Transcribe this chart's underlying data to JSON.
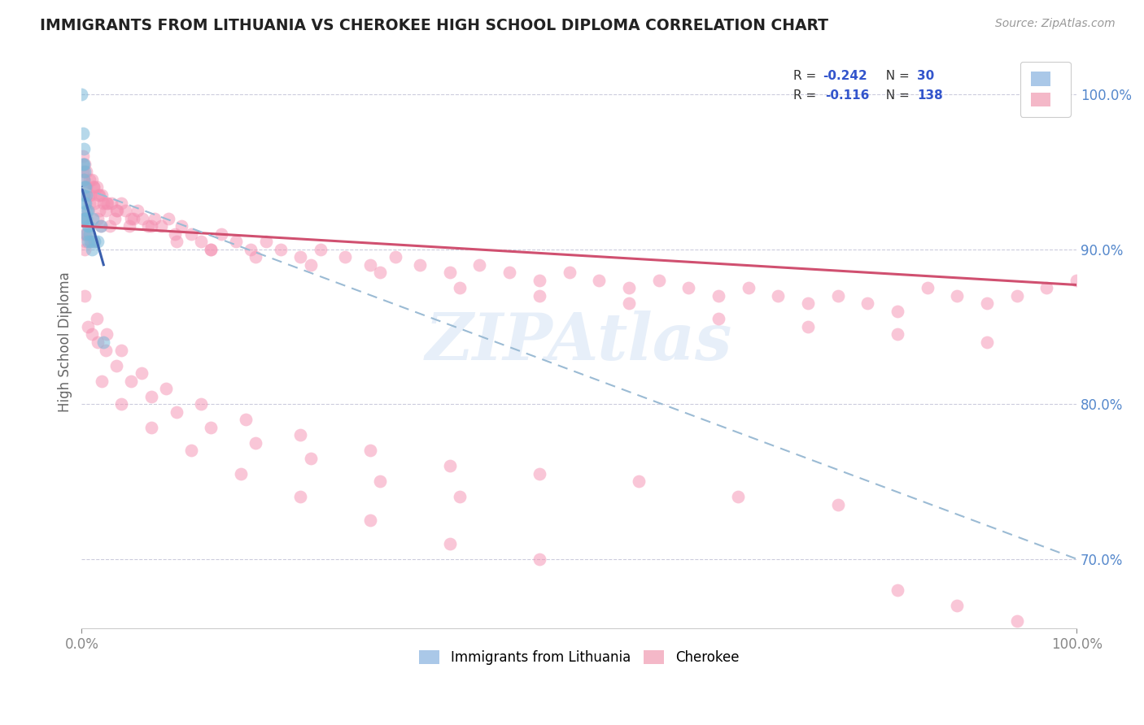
{
  "title": "IMMIGRANTS FROM LITHUANIA VS CHEROKEE HIGH SCHOOL DIPLOMA CORRELATION CHART",
  "source": "Source: ZipAtlas.com",
  "ylabel": "High School Diploma",
  "ytick_labels": [
    "70.0%",
    "80.0%",
    "90.0%",
    "100.0%"
  ],
  "ytick_values": [
    0.7,
    0.8,
    0.9,
    1.0
  ],
  "legend_labels_bottom": [
    "Immigrants from Lithuania",
    "Cherokee"
  ],
  "blue_scatter_x": [
    0.0,
    0.001,
    0.001,
    0.002,
    0.002,
    0.002,
    0.002,
    0.003,
    0.003,
    0.003,
    0.003,
    0.004,
    0.004,
    0.004,
    0.005,
    0.005,
    0.005,
    0.005,
    0.006,
    0.006,
    0.006,
    0.007,
    0.008,
    0.009,
    0.01,
    0.011,
    0.013,
    0.016,
    0.019,
    0.022
  ],
  "blue_scatter_y": [
    1.0,
    0.975,
    0.955,
    0.965,
    0.955,
    0.945,
    0.935,
    0.95,
    0.94,
    0.93,
    0.92,
    0.94,
    0.93,
    0.92,
    0.935,
    0.925,
    0.92,
    0.91,
    0.925,
    0.915,
    0.905,
    0.915,
    0.91,
    0.905,
    0.9,
    0.92,
    0.905,
    0.905,
    0.915,
    0.84
  ],
  "pink_scatter_x": [
    0.001,
    0.001,
    0.002,
    0.002,
    0.003,
    0.003,
    0.003,
    0.004,
    0.004,
    0.005,
    0.005,
    0.006,
    0.007,
    0.008,
    0.009,
    0.01,
    0.01,
    0.012,
    0.013,
    0.015,
    0.016,
    0.017,
    0.018,
    0.019,
    0.02,
    0.022,
    0.024,
    0.026,
    0.028,
    0.03,
    0.033,
    0.036,
    0.04,
    0.044,
    0.048,
    0.052,
    0.056,
    0.061,
    0.067,
    0.073,
    0.08,
    0.087,
    0.094,
    0.1,
    0.11,
    0.12,
    0.13,
    0.14,
    0.155,
    0.17,
    0.185,
    0.2,
    0.22,
    0.24,
    0.265,
    0.29,
    0.315,
    0.34,
    0.37,
    0.4,
    0.43,
    0.46,
    0.49,
    0.52,
    0.55,
    0.58,
    0.61,
    0.64,
    0.67,
    0.7,
    0.73,
    0.76,
    0.79,
    0.82,
    0.85,
    0.88,
    0.91,
    0.94,
    0.97,
    1.0,
    0.001,
    0.003,
    0.005,
    0.008,
    0.012,
    0.018,
    0.025,
    0.035,
    0.05,
    0.07,
    0.095,
    0.13,
    0.175,
    0.23,
    0.3,
    0.38,
    0.46,
    0.55,
    0.64,
    0.73,
    0.82,
    0.91,
    0.003,
    0.006,
    0.01,
    0.016,
    0.024,
    0.035,
    0.05,
    0.07,
    0.095,
    0.13,
    0.175,
    0.23,
    0.3,
    0.38,
    0.015,
    0.025,
    0.04,
    0.06,
    0.085,
    0.12,
    0.165,
    0.22,
    0.29,
    0.37,
    0.46,
    0.56,
    0.66,
    0.76,
    0.02,
    0.04,
    0.07,
    0.11,
    0.16,
    0.22,
    0.29,
    0.37,
    0.46,
    0.82,
    0.88,
    0.94
  ],
  "pink_scatter_y": [
    0.95,
    0.92,
    0.945,
    0.91,
    0.94,
    0.92,
    0.9,
    0.935,
    0.905,
    0.94,
    0.91,
    0.925,
    0.935,
    0.93,
    0.935,
    0.945,
    0.905,
    0.94,
    0.93,
    0.94,
    0.92,
    0.935,
    0.925,
    0.915,
    0.935,
    0.93,
    0.925,
    0.93,
    0.915,
    0.93,
    0.92,
    0.925,
    0.93,
    0.925,
    0.915,
    0.92,
    0.925,
    0.92,
    0.915,
    0.92,
    0.915,
    0.92,
    0.91,
    0.915,
    0.91,
    0.905,
    0.9,
    0.91,
    0.905,
    0.9,
    0.905,
    0.9,
    0.895,
    0.9,
    0.895,
    0.89,
    0.895,
    0.89,
    0.885,
    0.89,
    0.885,
    0.88,
    0.885,
    0.88,
    0.875,
    0.88,
    0.875,
    0.87,
    0.875,
    0.87,
    0.865,
    0.87,
    0.865,
    0.86,
    0.875,
    0.87,
    0.865,
    0.87,
    0.875,
    0.88,
    0.96,
    0.955,
    0.95,
    0.945,
    0.94,
    0.935,
    0.93,
    0.925,
    0.92,
    0.915,
    0.905,
    0.9,
    0.895,
    0.89,
    0.885,
    0.875,
    0.87,
    0.865,
    0.855,
    0.85,
    0.845,
    0.84,
    0.87,
    0.85,
    0.845,
    0.84,
    0.835,
    0.825,
    0.815,
    0.805,
    0.795,
    0.785,
    0.775,
    0.765,
    0.75,
    0.74,
    0.855,
    0.845,
    0.835,
    0.82,
    0.81,
    0.8,
    0.79,
    0.78,
    0.77,
    0.76,
    0.755,
    0.75,
    0.74,
    0.735,
    0.815,
    0.8,
    0.785,
    0.77,
    0.755,
    0.74,
    0.725,
    0.71,
    0.7,
    0.68,
    0.67,
    0.66
  ],
  "blue_line_x": [
    0.0,
    0.022
  ],
  "blue_line_y": [
    0.94,
    0.89
  ],
  "pink_line_x": [
    0.0,
    1.0
  ],
  "pink_line_y": [
    0.915,
    0.877
  ],
  "dashed_line_x": [
    0.0,
    1.0
  ],
  "dashed_line_y": [
    0.94,
    0.7
  ],
  "watermark": "ZIPAtlas",
  "bg_color": "#ffffff",
  "blue_color": "#7ab8d9",
  "pink_color": "#f48fb1",
  "blue_line_color": "#3a5fad",
  "pink_line_color": "#d05070",
  "dashed_line_color": "#9bbbd4",
  "title_color": "#222222",
  "right_tick_color": "#5588cc",
  "xlim": [
    0.0,
    1.0
  ],
  "ylim": [
    0.655,
    1.025
  ]
}
